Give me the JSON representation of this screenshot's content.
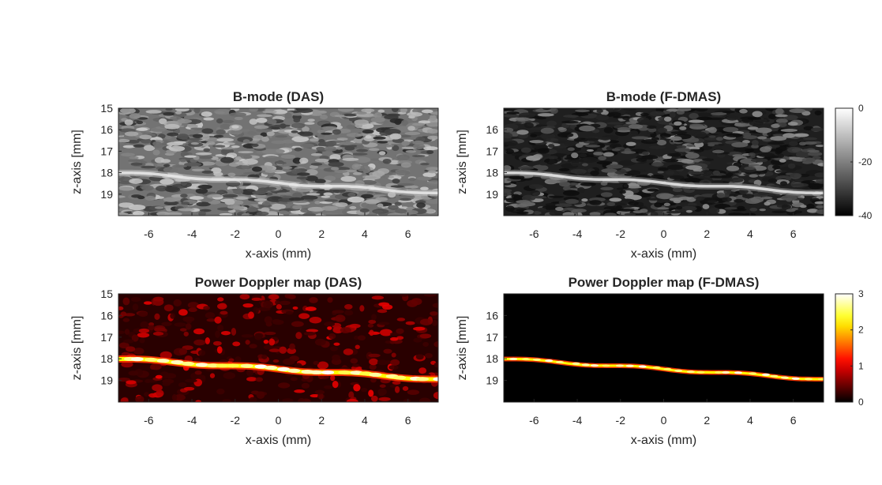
{
  "chart_data": [
    {
      "type": "heatmap",
      "title": "B-mode (DAS)",
      "xlabel": "x-axis (mm)",
      "ylabel": "z-axis [mm]",
      "xlim": [
        -7.4,
        7.4
      ],
      "ylim": [
        15,
        20
      ],
      "y_reversed": true,
      "xticks": [
        -6,
        -4,
        -2,
        0,
        2,
        4,
        6
      ],
      "yticks": [
        15,
        16,
        17,
        18,
        19
      ],
      "colormap": "gray",
      "image_content": "speckle texture with a bright vessel wall line from z≈18 at left to z≈19 at right"
    },
    {
      "type": "heatmap",
      "title": "B-mode (F-DMAS)",
      "xlabel": "x-axis (mm)",
      "ylabel": "z-axis [mm]",
      "xlim": [
        -7.4,
        7.4
      ],
      "ylim": [
        15,
        20
      ],
      "y_reversed": true,
      "xticks": [
        -6,
        -4,
        -2,
        0,
        2,
        4,
        6
      ],
      "yticks": [
        16,
        17,
        18,
        19
      ],
      "colormap": "gray",
      "colorbar": {
        "ticks": [
          0,
          -20,
          -40
        ],
        "range": [
          -40,
          0
        ]
      },
      "image_content": "darker speckle texture with a bright vessel wall line from z≈18 at left to z≈19 at right"
    },
    {
      "type": "heatmap",
      "title": "Power Doppler map (DAS)",
      "xlabel": "x-axis (mm)",
      "ylabel": "z-axis [mm]",
      "xlim": [
        -7.4,
        7.4
      ],
      "ylim": [
        15,
        20
      ],
      "y_reversed": true,
      "xticks": [
        -6,
        -4,
        -2,
        0,
        2,
        4,
        6
      ],
      "yticks": [
        15,
        16,
        17,
        18,
        19
      ],
      "colormap": "hot",
      "image_content": "bright flow line from z≈18 at left to z≈19 at right, with dim red background noise"
    },
    {
      "type": "heatmap",
      "title": "Power Doppler map (F-DMAS)",
      "xlabel": "x-axis (mm)",
      "ylabel": "z-axis [mm]",
      "xlim": [
        -7.4,
        7.4
      ],
      "ylim": [
        15,
        20
      ],
      "y_reversed": true,
      "xticks": [
        -6,
        -4,
        -2,
        0,
        2,
        4,
        6
      ],
      "yticks": [
        16,
        17,
        18,
        19
      ],
      "colormap": "hot",
      "colorbar": {
        "ticks": [
          3,
          2,
          1,
          0
        ],
        "range": [
          0,
          3
        ]
      },
      "image_content": "thin flow line from z≈18 at left to z≈19 at right on a black background"
    }
  ]
}
